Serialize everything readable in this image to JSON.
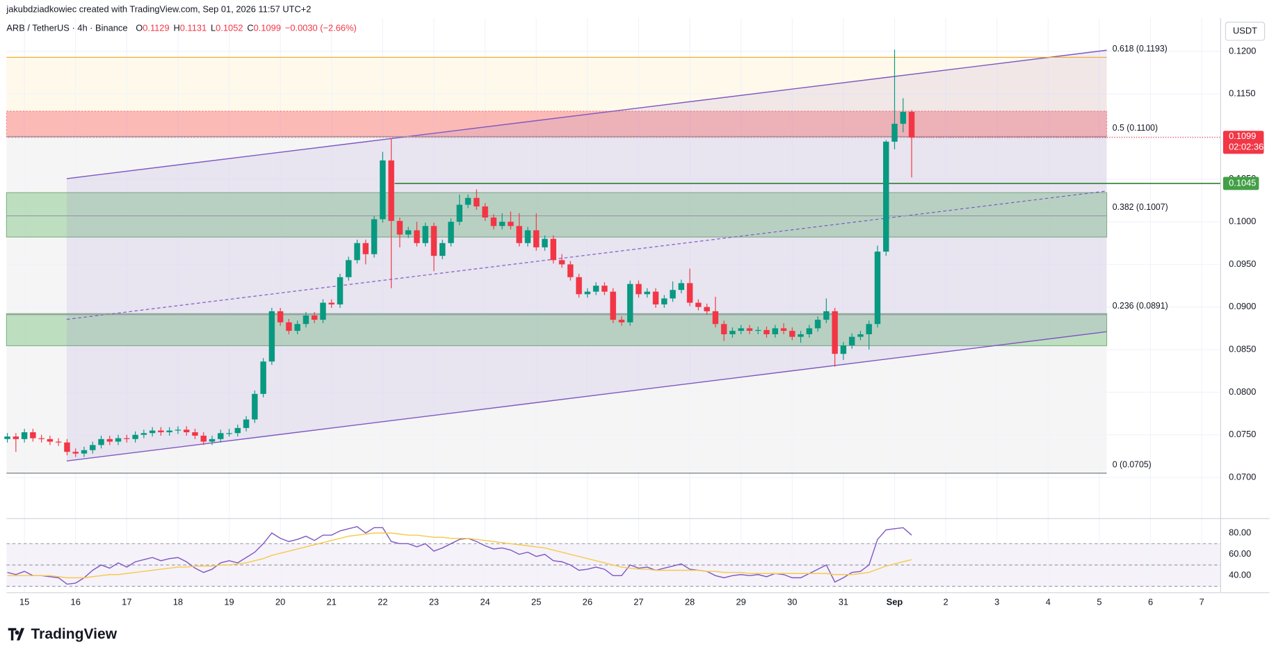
{
  "header": "jakubdziadkowiec created with TradingView.com, Sep 01, 2026 11:57 UTC+2",
  "logo": "TradingView",
  "chart_data": {
    "type": "candlestick",
    "legend": {
      "symbol": "ARB / TetherUS · 4h · Binance",
      "items": [
        {
          "key": "O",
          "value": 0.1129
        },
        {
          "key": "H",
          "value": 0.1131
        },
        {
          "key": "L",
          "value": 0.1052
        },
        {
          "key": "C",
          "value": 0.1099
        }
      ],
      "change": "−0.0030 (−2.66%)"
    },
    "currency": "USDT",
    "colors": {
      "up": "#089981",
      "down": "#f23645"
    },
    "ylim": [
      0.0657,
      0.1239
    ],
    "yticks": [
      {
        "value": 0.07,
        "label": "0.0700"
      },
      {
        "value": 0.075,
        "label": "0.0750"
      },
      {
        "value": 0.08,
        "label": "0.0800"
      },
      {
        "value": 0.085,
        "label": "0.0850"
      },
      {
        "value": 0.09,
        "label": "0.0900"
      },
      {
        "value": 0.095,
        "label": "0.0950"
      },
      {
        "value": 0.1,
        "label": "0.1000"
      },
      {
        "value": 0.105,
        "label": "0.1050"
      },
      {
        "value": 0.11,
        "label": "0.1100"
      },
      {
        "value": 0.115,
        "label": "0.1150"
      },
      {
        "value": 0.12,
        "label": "0.1200"
      }
    ],
    "x_labels": [
      "15",
      "16",
      "17",
      "18",
      "19",
      "20",
      "21",
      "22",
      "23",
      "24",
      "25",
      "26",
      "27",
      "28",
      "29",
      "30",
      "31",
      "Sep",
      "2",
      "3",
      "4",
      "5",
      "6",
      "7"
    ],
    "candles": [
      [
        0.0745,
        0.0752,
        0.0741,
        0.0748
      ],
      [
        0.0748,
        0.0752,
        0.073,
        0.0745
      ],
      [
        0.0745,
        0.0757,
        0.0741,
        0.0753
      ],
      [
        0.0753,
        0.0757,
        0.0742,
        0.0746
      ],
      [
        0.0746,
        0.075,
        0.0741,
        0.0745
      ],
      [
        0.0745,
        0.0749,
        0.0738,
        0.0742
      ],
      [
        0.0742,
        0.0746,
        0.0737,
        0.0741
      ],
      [
        0.0741,
        0.0745,
        0.0726,
        0.073
      ],
      [
        0.073,
        0.0734,
        0.0724,
        0.0728
      ],
      [
        0.0728,
        0.0736,
        0.0724,
        0.0732
      ],
      [
        0.0732,
        0.0742,
        0.0728,
        0.0738
      ],
      [
        0.0738,
        0.0749,
        0.0734,
        0.0745
      ],
      [
        0.0745,
        0.0749,
        0.0738,
        0.0742
      ],
      [
        0.0742,
        0.075,
        0.0738,
        0.0746
      ],
      [
        0.0746,
        0.075,
        0.0741,
        0.0745
      ],
      [
        0.0745,
        0.0754,
        0.0741,
        0.075
      ],
      [
        0.075,
        0.0756,
        0.0746,
        0.0752
      ],
      [
        0.0752,
        0.0759,
        0.0748,
        0.0755
      ],
      [
        0.0755,
        0.0759,
        0.0749,
        0.0753
      ],
      [
        0.0753,
        0.0759,
        0.0749,
        0.0755
      ],
      [
        0.0755,
        0.076,
        0.0751,
        0.0756
      ],
      [
        0.0756,
        0.076,
        0.0749,
        0.0753
      ],
      [
        0.0753,
        0.0757,
        0.0745,
        0.0749
      ],
      [
        0.0749,
        0.0753,
        0.0738,
        0.0742
      ],
      [
        0.0742,
        0.0749,
        0.0738,
        0.0745
      ],
      [
        0.0745,
        0.0756,
        0.0741,
        0.0752
      ],
      [
        0.0752,
        0.0757,
        0.0748,
        0.0752
      ],
      [
        0.0752,
        0.0762,
        0.0748,
        0.0758
      ],
      [
        0.0758,
        0.0772,
        0.0754,
        0.0768
      ],
      [
        0.0768,
        0.0802,
        0.0764,
        0.0798
      ],
      [
        0.0798,
        0.084,
        0.0794,
        0.0836
      ],
      [
        0.0836,
        0.0899,
        0.0832,
        0.0895
      ],
      [
        0.0895,
        0.0899,
        0.0878,
        0.0882
      ],
      [
        0.0882,
        0.0886,
        0.0868,
        0.0872
      ],
      [
        0.0872,
        0.0884,
        0.0868,
        0.088
      ],
      [
        0.088,
        0.0894,
        0.0876,
        0.089
      ],
      [
        0.089,
        0.0894,
        0.0881,
        0.0885
      ],
      [
        0.0885,
        0.0909,
        0.0881,
        0.0905
      ],
      [
        0.0905,
        0.0909,
        0.0899,
        0.0903
      ],
      [
        0.0903,
        0.0939,
        0.0899,
        0.0935
      ],
      [
        0.0935,
        0.0959,
        0.0931,
        0.0955
      ],
      [
        0.0955,
        0.0979,
        0.0951,
        0.0975
      ],
      [
        0.0975,
        0.0979,
        0.095,
        0.0962
      ],
      [
        0.0962,
        0.1007,
        0.0958,
        0.1003
      ],
      [
        0.1003,
        0.1082,
        0.0999,
        0.1072
      ],
      [
        0.1072,
        0.1098,
        0.0922,
        0.1001
      ],
      [
        0.1001,
        0.1005,
        0.097,
        0.0985
      ],
      [
        0.0985,
        0.0994,
        0.0981,
        0.099
      ],
      [
        0.099,
        0.1,
        0.0971,
        0.0975
      ],
      [
        0.0975,
        0.0999,
        0.0971,
        0.0995
      ],
      [
        0.0995,
        0.0999,
        0.0942,
        0.096
      ],
      [
        0.096,
        0.0979,
        0.0956,
        0.0975
      ],
      [
        0.0975,
        0.1004,
        0.0971,
        0.1
      ],
      [
        0.1,
        0.1032,
        0.0996,
        0.102
      ],
      [
        0.102,
        0.1032,
        0.1016,
        0.1028
      ],
      [
        0.1028,
        0.1038,
        0.1014,
        0.1018
      ],
      [
        0.1018,
        0.1022,
        0.1001,
        0.1005
      ],
      [
        0.1005,
        0.1009,
        0.0991,
        0.0995
      ],
      [
        0.0995,
        0.101,
        0.0991,
        0.1
      ],
      [
        0.1,
        0.1012,
        0.0991,
        0.0995
      ],
      [
        0.0995,
        0.101,
        0.0971,
        0.0975
      ],
      [
        0.0975,
        0.0994,
        0.0971,
        0.099
      ],
      [
        0.099,
        0.101,
        0.0966,
        0.097
      ],
      [
        0.097,
        0.0984,
        0.0966,
        0.098
      ],
      [
        0.098,
        0.0984,
        0.0951,
        0.0955
      ],
      [
        0.0955,
        0.0962,
        0.0946,
        0.095
      ],
      [
        0.095,
        0.0954,
        0.0931,
        0.0935
      ],
      [
        0.0935,
        0.0939,
        0.0911,
        0.0915
      ],
      [
        0.0915,
        0.0922,
        0.0911,
        0.0918
      ],
      [
        0.0918,
        0.0929,
        0.0914,
        0.0925
      ],
      [
        0.0925,
        0.0929,
        0.0914,
        0.0918
      ],
      [
        0.0918,
        0.0922,
        0.0881,
        0.0885
      ],
      [
        0.0885,
        0.0889,
        0.0878,
        0.0882
      ],
      [
        0.0882,
        0.0931,
        0.0878,
        0.0927
      ],
      [
        0.0927,
        0.0931,
        0.0911,
        0.0915
      ],
      [
        0.0915,
        0.0922,
        0.0911,
        0.0918
      ],
      [
        0.0918,
        0.0922,
        0.0899,
        0.0903
      ],
      [
        0.0903,
        0.0914,
        0.0899,
        0.091
      ],
      [
        0.091,
        0.093,
        0.0906,
        0.092
      ],
      [
        0.092,
        0.0932,
        0.0916,
        0.0928
      ],
      [
        0.0928,
        0.0945,
        0.0901,
        0.0905
      ],
      [
        0.0905,
        0.0909,
        0.0896,
        0.09
      ],
      [
        0.09,
        0.0904,
        0.0891,
        0.0895
      ],
      [
        0.0895,
        0.0912,
        0.0876,
        0.088
      ],
      [
        0.088,
        0.0884,
        0.086,
        0.0868
      ],
      [
        0.0868,
        0.0876,
        0.0864,
        0.0872
      ],
      [
        0.0872,
        0.0879,
        0.0868,
        0.0875
      ],
      [
        0.0875,
        0.0879,
        0.0868,
        0.0872
      ],
      [
        0.0872,
        0.0877,
        0.0868,
        0.0873
      ],
      [
        0.0873,
        0.0877,
        0.0864,
        0.0868
      ],
      [
        0.0868,
        0.0879,
        0.0864,
        0.0875
      ],
      [
        0.0875,
        0.0881,
        0.0868,
        0.0872
      ],
      [
        0.0872,
        0.0876,
        0.0861,
        0.0865
      ],
      [
        0.0865,
        0.0872,
        0.0858,
        0.0868
      ],
      [
        0.0868,
        0.0879,
        0.0864,
        0.0875
      ],
      [
        0.0875,
        0.0889,
        0.0871,
        0.0885
      ],
      [
        0.0885,
        0.091,
        0.0881,
        0.0895
      ],
      [
        0.0895,
        0.0899,
        0.083,
        0.0845
      ],
      [
        0.0845,
        0.0859,
        0.0838,
        0.0855
      ],
      [
        0.0855,
        0.0869,
        0.0851,
        0.0865
      ],
      [
        0.0865,
        0.0872,
        0.0861,
        0.0868
      ],
      [
        0.0868,
        0.0884,
        0.085,
        0.088
      ],
      [
        0.088,
        0.0972,
        0.0876,
        0.0965
      ],
      [
        0.0965,
        0.1096,
        0.096,
        0.1094
      ],
      [
        0.1094,
        0.1202,
        0.1085,
        0.1115
      ],
      [
        0.1115,
        0.1145,
        0.1105,
        0.1129
      ],
      [
        0.1129,
        0.1131,
        0.1052,
        0.1099
      ]
    ],
    "fib_levels": [
      {
        "label": "0.618 (0.1193)",
        "price": 0.1193,
        "color": "#f5a623"
      },
      {
        "label": "0.5 (0.1100)",
        "price": 0.11,
        "color": "#9598a1"
      },
      {
        "label": "0.382 (0.1007)",
        "price": 0.1007,
        "color": "#9598a1"
      },
      {
        "label": "0.236 (0.0891)",
        "price": 0.0891,
        "color": "#9598a1"
      },
      {
        "label": "0 (0.0705)",
        "price": 0.0705,
        "color": "#787b86"
      }
    ],
    "price_tag": {
      "value": 0.1099,
      "countdown": "02:02:36",
      "color": "#f23645"
    },
    "level_tag": {
      "value": 0.1045,
      "color": "#43a047"
    },
    "rsi": {
      "ylim": [
        24,
        92
      ],
      "yticks": [
        {
          "value": 80,
          "label": "80.00"
        },
        {
          "value": 60,
          "label": "60.00"
        },
        {
          "value": 40,
          "label": "40.00"
        }
      ],
      "levels": [
        70,
        50,
        30
      ],
      "series": [
        {
          "name": "RSI",
          "color": "#7e57c2",
          "values": [
            43,
            41,
            44,
            40,
            40,
            39,
            38,
            32,
            33,
            38,
            45,
            50,
            47,
            52,
            48,
            53,
            55,
            57,
            54,
            56,
            57,
            53,
            47,
            43,
            46,
            52,
            54,
            52,
            57,
            62,
            70,
            80,
            75,
            72,
            74,
            77,
            73,
            78,
            78,
            82,
            84,
            86,
            80,
            85,
            85,
            72,
            70,
            70,
            67,
            70,
            63,
            66,
            70,
            74,
            75,
            72,
            68,
            65,
            66,
            64,
            60,
            62,
            58,
            60,
            54,
            53,
            50,
            45,
            46,
            48,
            46,
            40,
            40,
            50,
            47,
            48,
            45,
            47,
            49,
            51,
            46,
            45,
            44,
            40,
            38,
            40,
            41,
            40,
            41,
            39,
            42,
            41,
            38,
            38,
            42,
            46,
            50,
            34,
            38,
            43,
            44,
            50,
            74,
            83,
            84,
            85,
            78
          ]
        },
        {
          "name": "RSI-based MA",
          "color": "#f7c948",
          "values": [
            40,
            40,
            40,
            40,
            40,
            40,
            39,
            38,
            38,
            38,
            39,
            40,
            41,
            41,
            42,
            43,
            44,
            45,
            46,
            47,
            48,
            48,
            49,
            49,
            49,
            50,
            50,
            51,
            52,
            54,
            56,
            59,
            61,
            63,
            65,
            67,
            69,
            71,
            73,
            75,
            77,
            78,
            79,
            80,
            80,
            80,
            79,
            78,
            78,
            77,
            76,
            76,
            75,
            75,
            75,
            74,
            73,
            72,
            71,
            70,
            69,
            68,
            67,
            66,
            64,
            62,
            60,
            58,
            56,
            54,
            52,
            50,
            48,
            47,
            46,
            46,
            45,
            45,
            45,
            45,
            45,
            45,
            44,
            44,
            43,
            43,
            43,
            42,
            42,
            42,
            42,
            42,
            42,
            42,
            42,
            42,
            42,
            41,
            41,
            41,
            42,
            43,
            46,
            49,
            51,
            53,
            55
          ]
        }
      ]
    }
  }
}
